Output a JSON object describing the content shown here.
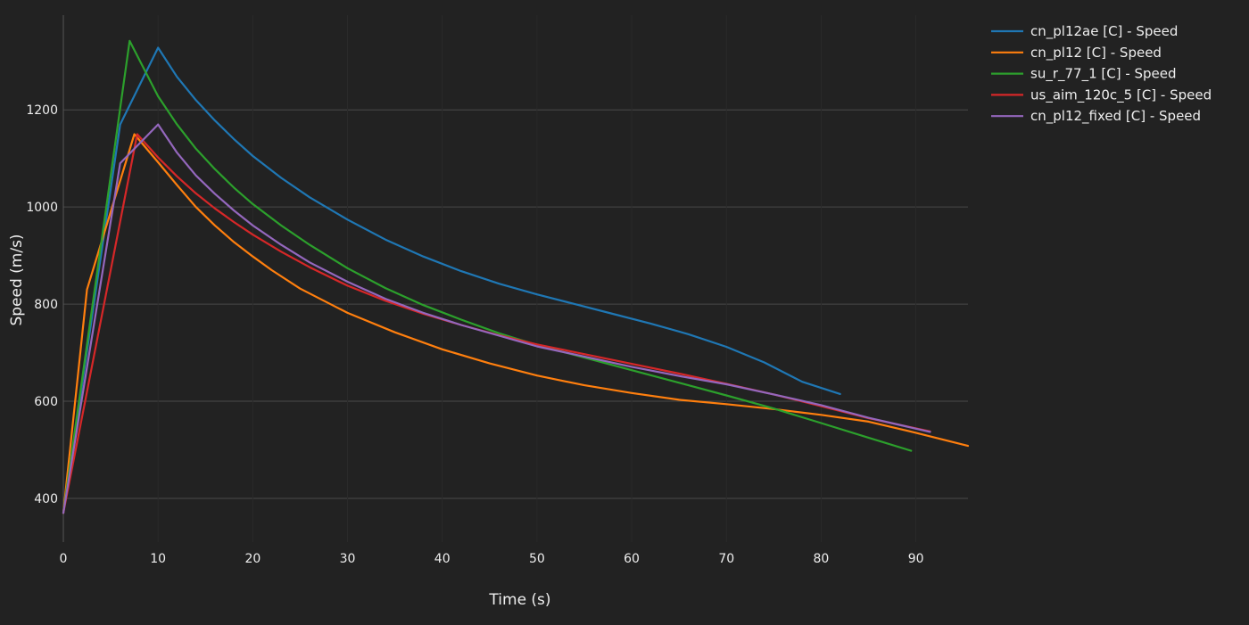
{
  "chart_data": {
    "type": "line",
    "title": "",
    "xlabel": "Time (s)",
    "ylabel": "Speed (m/s)",
    "xlim": [
      0,
      95.5
    ],
    "ylim": [
      310,
      1395
    ],
    "x_ticks": [
      0,
      10,
      20,
      30,
      40,
      50,
      60,
      70,
      80,
      90
    ],
    "y_ticks": [
      400,
      600,
      800,
      1000,
      1200
    ],
    "grid": true,
    "legend_position": "top-right",
    "background": "#222222",
    "series": [
      {
        "name": "cn_pl12ae [C] - Speed",
        "color": "#1f77b4",
        "x": [
          0,
          6,
          10,
          12,
          14,
          16,
          18,
          20,
          23,
          26,
          30,
          34,
          38,
          42,
          46,
          50,
          54,
          58,
          62,
          66,
          70,
          74,
          78,
          82
        ],
        "y": [
          370,
          1170,
          1328,
          1268,
          1220,
          1178,
          1140,
          1105,
          1060,
          1020,
          974,
          933,
          898,
          868,
          842,
          820,
          800,
          780,
          760,
          738,
          712,
          680,
          640,
          615
        ]
      },
      {
        "name": "cn_pl12 [C] - Speed",
        "color": "#ff7f0e",
        "x": [
          0,
          2.5,
          7.5,
          10,
          12,
          14,
          16,
          18,
          20,
          22,
          25,
          30,
          35,
          40,
          45,
          50,
          55,
          60,
          65,
          70,
          75,
          80,
          85,
          90,
          95.5
        ],
        "y": [
          370,
          830,
          1150,
          1092,
          1045,
          1000,
          962,
          928,
          898,
          870,
          832,
          782,
          742,
          707,
          678,
          653,
          633,
          617,
          603,
          594,
          584,
          572,
          558,
          535,
          508
        ]
      },
      {
        "name": "su_r_77_1 [C] - Speed",
        "color": "#2ca02c",
        "x": [
          0,
          7,
          10,
          12,
          14,
          16,
          18,
          20,
          23,
          26,
          30,
          34,
          38,
          42,
          46,
          50,
          55,
          60,
          65,
          70,
          75,
          80,
          85,
          89.5
        ],
        "y": [
          370,
          1342,
          1228,
          1170,
          1120,
          1078,
          1040,
          1006,
          962,
          922,
          874,
          833,
          798,
          768,
          740,
          716,
          690,
          664,
          638,
          612,
          585,
          555,
          525,
          498
        ]
      },
      {
        "name": "us_aim_120c_5 [C] - Speed",
        "color": "#d62728",
        "x": [
          0,
          7.8,
          10,
          12,
          14,
          16,
          18,
          20,
          23,
          26,
          30,
          34,
          38,
          42,
          46,
          50,
          55,
          60,
          65,
          70,
          75,
          80,
          85,
          91.5
        ],
        "y": [
          370,
          1150,
          1102,
          1063,
          1028,
          997,
          969,
          943,
          908,
          876,
          838,
          807,
          780,
          757,
          736,
          717,
          697,
          677,
          657,
          636,
          614,
          590,
          565,
          538
        ]
      },
      {
        "name": "cn_pl12_fixed [C] - Speed",
        "color": "#9467bd",
        "x": [
          0,
          6,
          10,
          12,
          14,
          16,
          18,
          20,
          23,
          26,
          30,
          34,
          38,
          42,
          46,
          50,
          55,
          60,
          65,
          70,
          75,
          80,
          85,
          91.5
        ],
        "y": [
          370,
          1090,
          1170,
          1112,
          1065,
          1027,
          993,
          962,
          922,
          886,
          846,
          811,
          782,
          757,
          735,
          713,
          692,
          671,
          652,
          635,
          614,
          592,
          566,
          537
        ]
      }
    ]
  }
}
